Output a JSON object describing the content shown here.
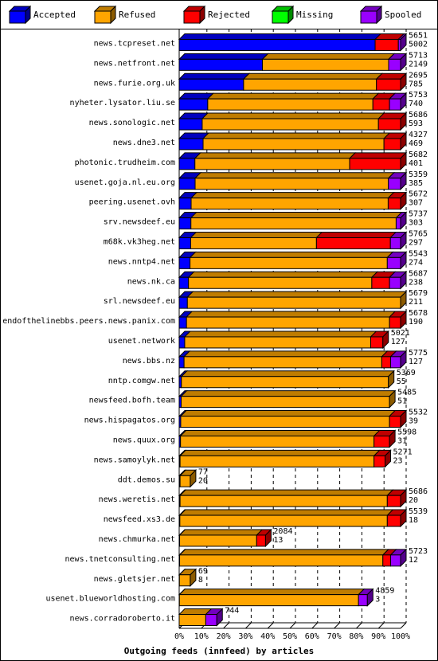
{
  "legend": [
    {
      "label": "Accepted",
      "color": "#0000ff"
    },
    {
      "label": "Refused",
      "color": "#ffa500"
    },
    {
      "label": "Rejected",
      "color": "#ff0000"
    },
    {
      "label": "Missing",
      "color": "#00ff00"
    },
    {
      "label": "Spooled",
      "color": "#9900ff"
    }
  ],
  "chart_data": {
    "type": "bar",
    "orientation": "horizontal",
    "stacked": true,
    "xlabel": "Outgoing feeds (innfeed) by articles",
    "xlim": [
      0,
      100
    ],
    "x_unit": "%",
    "x_ticks": [
      "0%",
      "10%",
      "20%",
      "30%",
      "40%",
      "50%",
      "60%",
      "70%",
      "80%",
      "90%",
      "100%"
    ],
    "series_names": [
      "Accepted",
      "Refused",
      "Rejected",
      "Missing",
      "Spooled"
    ],
    "rows": [
      {
        "name": "news.tcpreset.net",
        "total": "5651",
        "accepted": "5002",
        "pct": [
          88.5,
          0,
          10.5,
          0,
          1.0
        ]
      },
      {
        "name": "news.netfront.net",
        "total": "5713",
        "accepted": "2149",
        "pct": [
          37.6,
          57.0,
          0,
          0,
          5.4
        ]
      },
      {
        "name": "news.furie.org.uk",
        "total": "2695",
        "accepted": "785",
        "pct": [
          29.1,
          60.0,
          10.9,
          0,
          0
        ]
      },
      {
        "name": "nyheter.lysator.liu.se",
        "total": "5753",
        "accepted": "740",
        "pct": [
          12.9,
          74.6,
          7.5,
          0,
          5.0
        ]
      },
      {
        "name": "news.sonologic.net",
        "total": "5686",
        "accepted": "593",
        "pct": [
          10.4,
          79.6,
          10.0,
          0,
          0
        ]
      },
      {
        "name": "news.dne3.net",
        "total": "4327",
        "accepted": "469",
        "pct": [
          10.8,
          81.7,
          7.5,
          0,
          0
        ]
      },
      {
        "name": "photonic.trudheim.com",
        "total": "5682",
        "accepted": "401",
        "pct": [
          7.1,
          69.9,
          23.0,
          0,
          0
        ]
      },
      {
        "name": "usenet.goja.nl.eu.org",
        "total": "5359",
        "accepted": "385",
        "pct": [
          7.2,
          87.3,
          0,
          0,
          5.5
        ]
      },
      {
        "name": "peering.usenet.ovh",
        "total": "5672",
        "accepted": "307",
        "pct": [
          5.4,
          89.0,
          5.6,
          0,
          0
        ]
      },
      {
        "name": "srv.newsdeef.eu",
        "total": "5737",
        "accepted": "303",
        "pct": [
          5.3,
          92.7,
          0,
          0,
          2.0
        ]
      },
      {
        "name": "m68k.vk3heg.net",
        "total": "5765",
        "accepted": "297",
        "pct": [
          5.2,
          56.8,
          33.4,
          0,
          4.6
        ]
      },
      {
        "name": "news.nntp4.net",
        "total": "5543",
        "accepted": "274",
        "pct": [
          4.9,
          89.1,
          0,
          0,
          6.0
        ]
      },
      {
        "name": "news.nk.ca",
        "total": "5687",
        "accepted": "238",
        "pct": [
          4.2,
          82.8,
          8.0,
          0,
          5.0
        ]
      },
      {
        "name": "srl.newsdeef.eu",
        "total": "5679",
        "accepted": "211",
        "pct": [
          3.7,
          96.3,
          0,
          0,
          0
        ]
      },
      {
        "name": "endofthelinebbs.peers.news.panix.com",
        "total": "5678",
        "accepted": "190",
        "pct": [
          3.3,
          91.7,
          5.0,
          0,
          0
        ]
      },
      {
        "name": "usenet.network",
        "total": "5021",
        "accepted": "127",
        "pct": [
          2.5,
          84.0,
          5.5,
          0,
          0
        ]
      },
      {
        "name": "news.bbs.nz",
        "total": "5775",
        "accepted": "127",
        "pct": [
          2.2,
          89.3,
          4.0,
          0,
          4.5
        ]
      },
      {
        "name": "nntp.comgw.net",
        "total": "5369",
        "accepted": "55",
        "pct": [
          1.0,
          93.5,
          0,
          0,
          0
        ]
      },
      {
        "name": "newsfeed.bofh.team",
        "total": "5485",
        "accepted": "51",
        "pct": [
          0.9,
          94.1,
          0,
          0,
          0
        ]
      },
      {
        "name": "news.hispagatos.org",
        "total": "5532",
        "accepted": "39",
        "pct": [
          0.7,
          94.3,
          5.0,
          0,
          0
        ]
      },
      {
        "name": "news.quux.org",
        "total": "5598",
        "accepted": "31",
        "pct": [
          0.6,
          87.4,
          7.0,
          0,
          0
        ]
      },
      {
        "name": "news.samoylyk.net",
        "total": "5271",
        "accepted": "23",
        "pct": [
          0.4,
          87.6,
          5.0,
          0,
          0
        ]
      },
      {
        "name": "ddt.demos.su",
        "total": "77",
        "accepted": "20",
        "pct": [
          0.4,
          4.6,
          0,
          0,
          0
        ]
      },
      {
        "name": "news.weretis.net",
        "total": "5686",
        "accepted": "20",
        "pct": [
          0.4,
          93.6,
          6.0,
          0,
          0
        ]
      },
      {
        "name": "newsfeed.xs3.de",
        "total": "5539",
        "accepted": "18",
        "pct": [
          0.3,
          93.7,
          6.0,
          0,
          0
        ]
      },
      {
        "name": "news.chmurka.net",
        "total": "2084",
        "accepted": "13",
        "pct": [
          0.2,
          34.8,
          4.0,
          0,
          0
        ]
      },
      {
        "name": "news.tnetconsulting.net",
        "total": "5723",
        "accepted": "12",
        "pct": [
          0.2,
          91.8,
          3.5,
          0,
          4.5
        ]
      },
      {
        "name": "news.gletsjer.net",
        "total": "69",
        "accepted": "8",
        "pct": [
          0.1,
          4.9,
          0,
          0,
          0
        ]
      },
      {
        "name": "usenet.blueworldhosting.com",
        "total": "4859",
        "accepted": "3",
        "pct": [
          0.1,
          80.9,
          0,
          0,
          4.0
        ]
      },
      {
        "name": "news.corradoroberto.it",
        "total": "744",
        "accepted": "",
        "pct": [
          0,
          12.0,
          0,
          0,
          5.0
        ]
      }
    ]
  }
}
